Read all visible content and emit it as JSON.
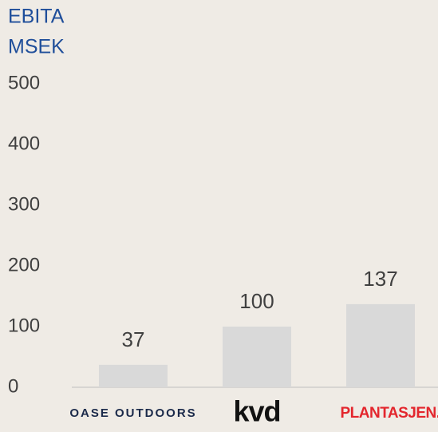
{
  "chart_data": {
    "type": "bar",
    "title_lines": [
      "EBITA",
      "MSEK"
    ],
    "categories": [
      "OASE OUTDOORS",
      "kvd",
      "PLANTASJEN."
    ],
    "values": [
      37,
      100,
      137
    ],
    "color": "#d9d9d9",
    "ylim": [
      0,
      500
    ],
    "yticks": [
      0,
      100,
      200,
      300,
      400,
      500
    ],
    "grid": false
  }
}
